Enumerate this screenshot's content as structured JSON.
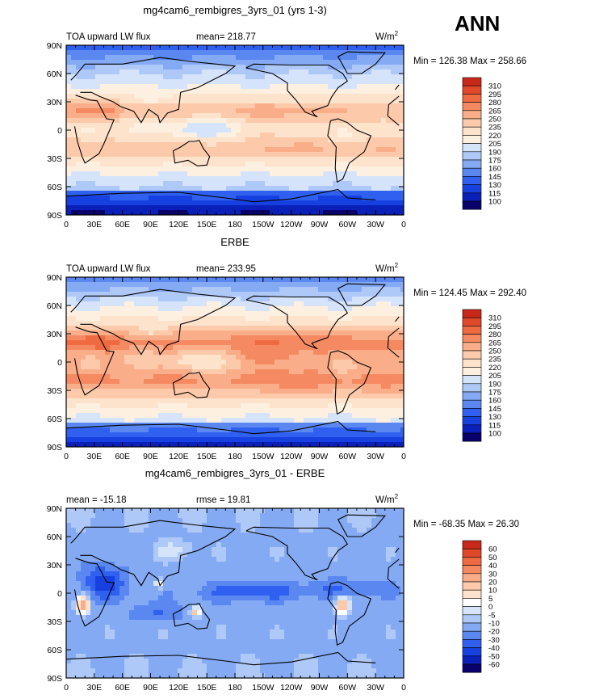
{
  "season": "ANN",
  "colors": {
    "abs": [
      "#08006b",
      "#0a20b8",
      "#1740e0",
      "#3060f0",
      "#5a88f0",
      "#85aaf4",
      "#aec8f7",
      "#d6e4fb",
      "#fdf0e0",
      "#fde2cc",
      "#fccaaa",
      "#f9ad88",
      "#f58a62",
      "#ee6a40",
      "#e0482a",
      "#c8281a",
      "#9e0f0a"
    ],
    "diff": [
      "#08006b",
      "#0a20b8",
      "#1740e0",
      "#3060f0",
      "#5a88f0",
      "#85aaf4",
      "#aec8f7",
      "#d6e4fb",
      "#ffffff",
      "#fde2cc",
      "#fccaaa",
      "#f9ad88",
      "#f58a62",
      "#ee6a40",
      "#e0482a",
      "#c8281a",
      "#9e0f0a"
    ]
  },
  "panels": [
    {
      "id": "model",
      "title": "mg4cam6_rembigres_3yrs_01 (yrs 1-3)",
      "left_label": "TOA upward LW flux",
      "mean_label": "mean= 218.77",
      "rmse_label": "",
      "units": "W/m",
      "units_sup": "2",
      "minmax": "Min = 126.38 Max = 258.66",
      "scale": "abs"
    },
    {
      "id": "obs",
      "title": "ERBE",
      "left_label": "TOA upward LW flux",
      "mean_label": "mean= 233.95",
      "rmse_label": "",
      "units": "W/m",
      "units_sup": "2",
      "minmax": "Min = 124.45 Max = 292.40",
      "scale": "abs"
    },
    {
      "id": "diff",
      "title": "mg4cam6_rembigres_3yrs_01 - ERBE",
      "left_label": "mean = -15.18",
      "mean_label": "",
      "rmse_label": "rmse =  19.81",
      "units": "W/m",
      "units_sup": "2",
      "minmax": "Min = -68.35 Max =  26.30",
      "scale": "diff"
    }
  ],
  "chart_data": {
    "type": "heatmap",
    "subtype": "global lat-lon contour map, cylindrical equidistant",
    "variable": "TOA upward LW flux",
    "units": "W/m2",
    "season": "ANN",
    "x_ticks": [
      "0",
      "30E",
      "60E",
      "90E",
      "120E",
      "150E",
      "180",
      "150W",
      "120W",
      "90W",
      "60W",
      "30W",
      "0"
    ],
    "y_ticks": [
      "90N",
      "60N",
      "30N",
      "0",
      "30S",
      "60S",
      "90S"
    ],
    "xlim": [
      0,
      360
    ],
    "ylim": [
      -90,
      90
    ],
    "abs_levels": [
      310,
      295,
      280,
      265,
      250,
      235,
      220,
      205,
      190,
      175,
      160,
      145,
      130,
      115,
      100
    ],
    "diff_levels": [
      60,
      50,
      40,
      30,
      20,
      10,
      5,
      0,
      -5,
      -10,
      -20,
      -30,
      -40,
      -50,
      -60
    ],
    "stats": [
      {
        "panel": "mg4cam6_rembigres_3yrs_01 (yrs 1-3)",
        "mean": 218.77,
        "min": 126.38,
        "max": 258.66
      },
      {
        "panel": "ERBE",
        "mean": 233.95,
        "min": 124.45,
        "max": 292.4
      },
      {
        "panel": "mg4cam6_rembigres_3yrs_01 - ERBE",
        "mean": -15.18,
        "rmse": 19.81,
        "min": -68.35,
        "max": 26.3
      }
    ]
  }
}
